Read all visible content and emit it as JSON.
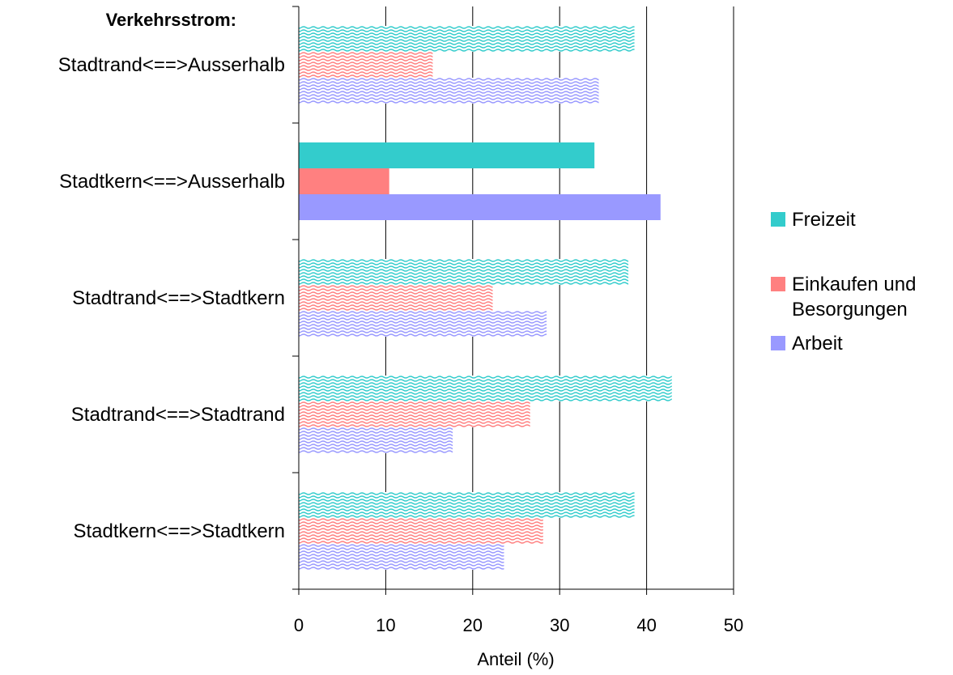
{
  "chart_data": {
    "type": "bar",
    "orientation": "horizontal",
    "row_title": "Verkehrsstrom:",
    "xlabel": "Anteil (%)",
    "xlim": [
      0,
      50
    ],
    "xticks": [
      "0",
      "10",
      "20",
      "30",
      "40",
      "50"
    ],
    "grid": true,
    "legend_position": "right",
    "categories": [
      "Stadtrand<==>Ausserhalb",
      "Stadtkern<==>Ausserhalb",
      "Stadtrand<==>Stadtkern",
      "Stadtrand<==>Stadtrand",
      "Stadtkern<==>Stadtkern"
    ],
    "highlighted_category": "Stadtkern<==>Ausserhalb",
    "series": [
      {
        "name": "Freizeit",
        "color": "#33cccc",
        "values": [
          38.6,
          34.0,
          37.9,
          42.9,
          38.6
        ]
      },
      {
        "name": "Einkaufen und Besorgungen",
        "color": "#ff8080",
        "values": [
          15.4,
          10.4,
          22.3,
          26.6,
          28.1
        ]
      },
      {
        "name": "Arbeit",
        "color": "#9999ff",
        "values": [
          34.5,
          41.6,
          28.5,
          17.7,
          23.6
        ]
      }
    ],
    "legend": {
      "items": [
        {
          "label_lines": [
            "Freizeit"
          ]
        },
        {
          "label_lines": [
            "Einkaufen und",
            "Besorgungen"
          ]
        },
        {
          "label_lines": [
            "Arbeit"
          ]
        }
      ]
    }
  }
}
